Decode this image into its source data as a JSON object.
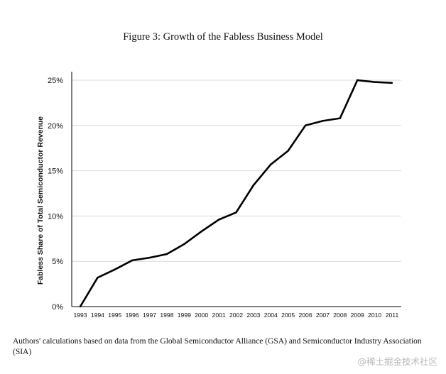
{
  "figure": {
    "title": "Figure 3: Growth of the Fabless Business Model",
    "caption": "Authors' calculations based on data from the Global Semiconductor Alliance (GSA) and Semiconductor Industry Association (SIA)",
    "watermark": "@稀土掘金技术社区"
  },
  "chart_data": {
    "type": "line",
    "title": "",
    "xlabel": "",
    "ylabel": "Fabless Share of Total Semiconductor Revenue",
    "x": [
      "1993",
      "1994",
      "1995",
      "1996",
      "1997",
      "1998",
      "1999",
      "2000",
      "2001",
      "2002",
      "2003",
      "2004",
      "2005",
      "2006",
      "2007",
      "2008",
      "2009",
      "2010",
      "2011"
    ],
    "series": [
      {
        "values": [
          0.0,
          3.2,
          4.1,
          5.1,
          5.4,
          5.8,
          6.9,
          8.3,
          9.6,
          10.4,
          13.4,
          15.7,
          17.2,
          20.0,
          20.5,
          20.8,
          25.0,
          24.8,
          24.7
        ]
      }
    ],
    "ylim": [
      0,
      25
    ],
    "yticks": [
      0,
      5,
      10,
      15,
      20,
      25
    ],
    "ytick_labels": [
      "0%",
      "5%",
      "10%",
      "15%",
      "20%",
      "25%"
    ],
    "grid": true,
    "line_color": "#000000",
    "grid_color": "#d9d9d9"
  }
}
